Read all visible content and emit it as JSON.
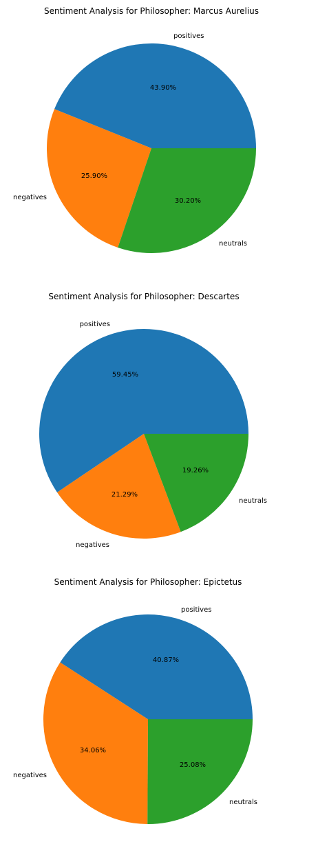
{
  "chart_data": [
    {
      "type": "pie",
      "title": "Sentiment Analysis for  Philosopher: Marcus Aurelius",
      "categories": [
        "positives",
        "negatives",
        "neutrals"
      ],
      "values": [
        43.9,
        25.9,
        30.2
      ],
      "value_labels": [
        "43.90%",
        "25.90%",
        "30.20%"
      ],
      "colors": [
        "#1f77b4",
        "#ff7f0e",
        "#2ca02c"
      ]
    },
    {
      "type": "pie",
      "title": "Sentiment Analysis for  Philosopher: Descartes",
      "categories": [
        "positives",
        "negatives",
        "neutrals"
      ],
      "values": [
        59.45,
        21.29,
        19.26
      ],
      "value_labels": [
        "59.45%",
        "21.29%",
        "19.26%"
      ],
      "colors": [
        "#1f77b4",
        "#ff7f0e",
        "#2ca02c"
      ]
    },
    {
      "type": "pie",
      "title": "Sentiment Analysis for  Philosopher: Epictetus",
      "categories": [
        "positives",
        "negatives",
        "neutrals"
      ],
      "values": [
        40.87,
        34.06,
        25.08
      ],
      "value_labels": [
        "40.87%",
        "34.06%",
        "25.08%"
      ],
      "colors": [
        "#1f77b4",
        "#ff7f0e",
        "#2ca02c"
      ]
    }
  ]
}
